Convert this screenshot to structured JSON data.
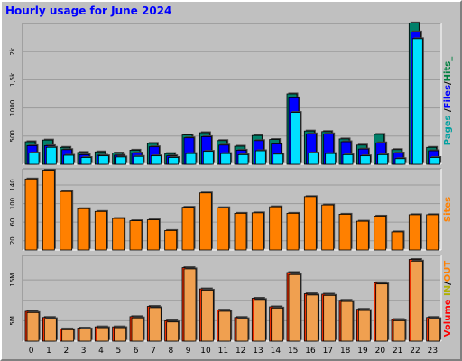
{
  "title": "Hourly usage for June 2024",
  "legend": {
    "panel1": [
      {
        "text": "Pages",
        "color": "#00a0a0"
      },
      {
        "text": " /",
        "color": "#000000"
      },
      {
        "text": "Files",
        "color": "#0000ff"
      },
      {
        "text": "/",
        "color": "#000000"
      },
      {
        "text": "Hits_",
        "color": "#008040"
      }
    ],
    "panel2": [
      {
        "text": "Sites",
        "color": "#ff8000"
      }
    ],
    "panel3": [
      {
        "text": "Volume",
        "color": "#ff0000"
      },
      {
        "text": "  ",
        "color": "#000000"
      },
      {
        "text": "IN",
        "color": "#b0b000"
      },
      {
        "text": "/",
        "color": "#000000"
      },
      {
        "text": "OUT",
        "color": "#ff8000"
      }
    ]
  },
  "chart_data": [
    {
      "type": "bar",
      "categories": [
        "0",
        "1",
        "2",
        "3",
        "4",
        "5",
        "6",
        "7",
        "8",
        "9",
        "10",
        "11",
        "12",
        "13",
        "14",
        "15",
        "16",
        "17",
        "18",
        "19",
        "20",
        "21",
        "22",
        "23"
      ],
      "ylim": [
        0,
        2500
      ],
      "yticks": [
        500,
        1000,
        1500,
        2000
      ],
      "ytick_labels": [
        "500",
        "1000",
        "1,5k",
        "2k"
      ],
      "series": [
        {
          "name": "Hits",
          "color": "#00806a",
          "values": [
            400,
            430,
            300,
            210,
            220,
            200,
            250,
            370,
            190,
            520,
            560,
            420,
            320,
            510,
            440,
            1250,
            590,
            580,
            450,
            340,
            530,
            260,
            2510,
            300
          ]
        },
        {
          "name": "Files",
          "color": "#0000ff",
          "values": [
            330,
            330,
            260,
            170,
            160,
            160,
            200,
            310,
            150,
            470,
            490,
            340,
            250,
            420,
            360,
            1180,
            540,
            540,
            400,
            270,
            380,
            200,
            2350,
            240
          ]
        },
        {
          "name": "Pages",
          "color": "#00e0ff",
          "values": [
            200,
            300,
            160,
            120,
            150,
            130,
            140,
            150,
            120,
            190,
            230,
            190,
            170,
            240,
            180,
            920,
            200,
            190,
            170,
            150,
            170,
            100,
            2230,
            120
          ]
        }
      ]
    },
    {
      "type": "bar",
      "categories": [
        "0",
        "1",
        "2",
        "3",
        "4",
        "5",
        "6",
        "7",
        "8",
        "9",
        "10",
        "11",
        "12",
        "13",
        "14",
        "15",
        "16",
        "17",
        "18",
        "19",
        "20",
        "21",
        "22",
        "23"
      ],
      "ylim": [
        0,
        175
      ],
      "yticks": [
        20,
        60,
        100,
        140
      ],
      "ytick_labels": [
        "20",
        "60",
        "100",
        "140"
      ],
      "series": [
        {
          "name": "Sites",
          "color": "#ff8000",
          "values": [
            153,
            172,
            126,
            89,
            83,
            68,
            63,
            65,
            42,
            92,
            123,
            91,
            79,
            80,
            93,
            79,
            115,
            97,
            77,
            62,
            73,
            39,
            76,
            76
          ]
        }
      ]
    },
    {
      "type": "bar",
      "categories": [
        "0",
        "1",
        "2",
        "3",
        "4",
        "5",
        "6",
        "7",
        "8",
        "9",
        "10",
        "11",
        "12",
        "13",
        "14",
        "15",
        "16",
        "17",
        "18",
        "19",
        "20",
        "21",
        "22",
        "23"
      ],
      "ylim": [
        0,
        21000000
      ],
      "yticks": [
        5000000,
        10000000,
        15000000
      ],
      "ytick_labels": [
        "5M",
        "",
        "15M"
      ],
      "series": [
        {
          "name": "IN",
          "color": "#ff3000",
          "values": [
            7300000,
            5800000,
            3000000,
            3200000,
            3500000,
            3500000,
            6000000,
            8500000,
            5000000,
            18000000,
            12800000,
            7600000,
            5800000,
            10500000,
            8400000,
            16800000,
            11600000,
            11500000,
            10000000,
            7800000,
            14300000,
            5300000,
            20000000,
            5800000
          ]
        },
        {
          "name": "OUT",
          "color": "#f0a050",
          "values": [
            7000000,
            5500000,
            2800000,
            3000000,
            3300000,
            3300000,
            5700000,
            8200000,
            4700000,
            17700000,
            12500000,
            7300000,
            5500000,
            10200000,
            8100000,
            16300000,
            11300000,
            11200000,
            9700000,
            7500000,
            14000000,
            5000000,
            19600000,
            5500000
          ]
        }
      ]
    }
  ]
}
